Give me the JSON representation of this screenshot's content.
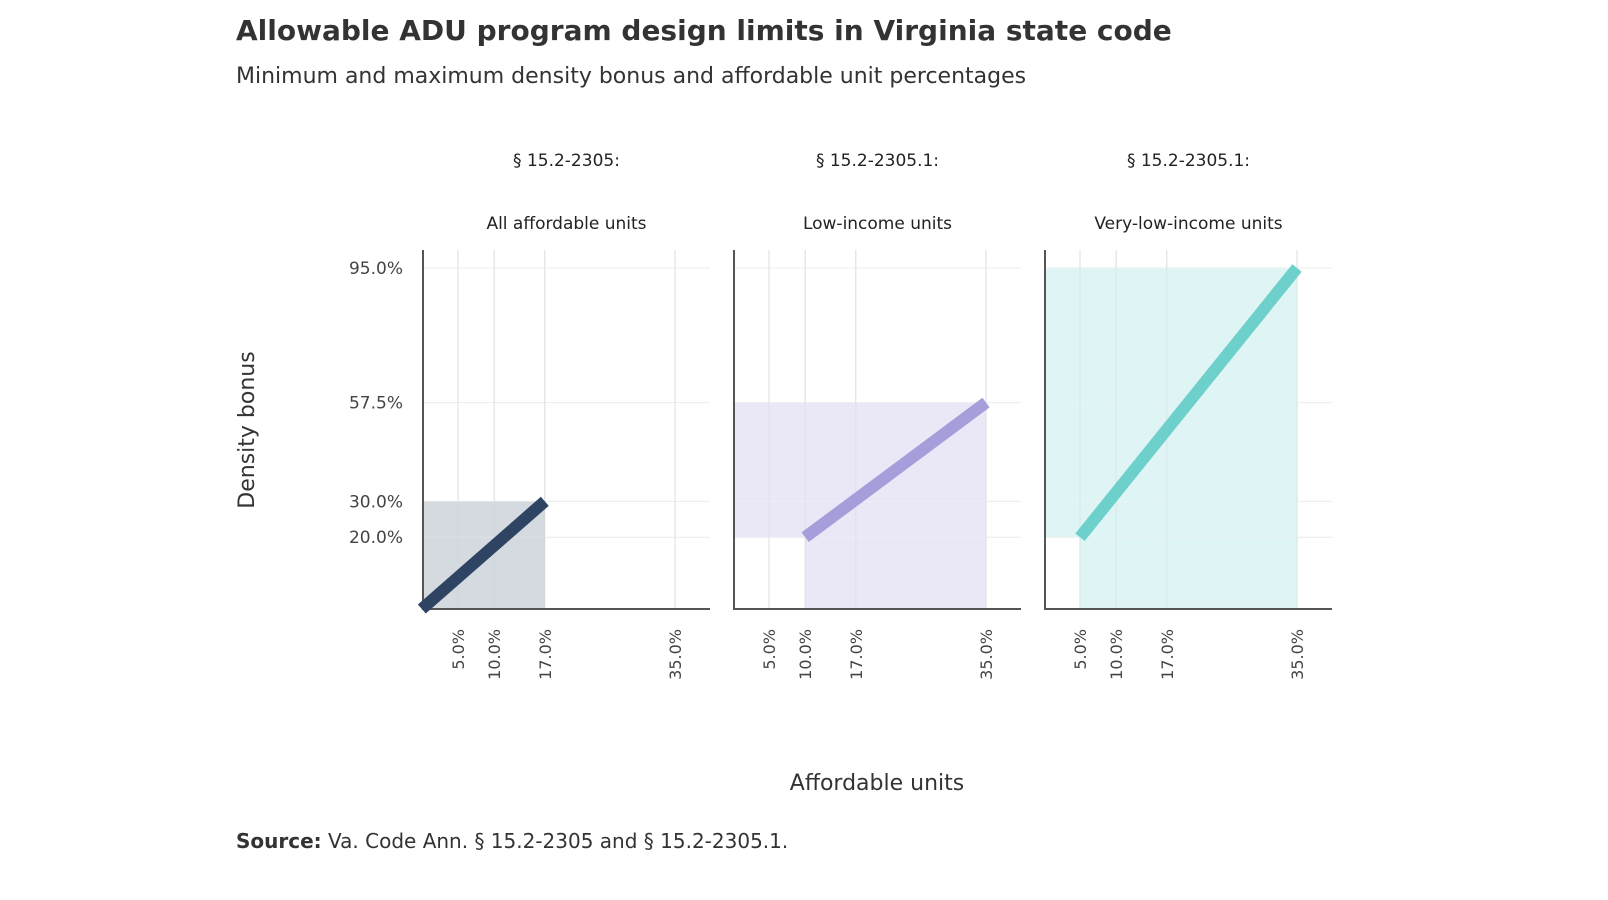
{
  "header": {
    "title": "Allowable ADU program design limits in Virginia state code",
    "subtitle": "Minimum and maximum density bonus and affordable unit percentages"
  },
  "footer": {
    "source_label": "Source:",
    "source_text": "Va. Code Ann. § 15.2-2305 and § 15.2-2305.1."
  },
  "chart_data": {
    "type": "line",
    "xlabel": "Affordable units",
    "ylabel": "Density bonus",
    "x_ticks": [
      "5.0%",
      "10.0%",
      "17.0%",
      "35.0%"
    ],
    "x_tick_values": [
      5,
      10,
      17,
      35
    ],
    "y_ticks": [
      "95.0%",
      "57.5%",
      "30.0%",
      "20.0%"
    ],
    "y_tick_values": [
      95,
      57.5,
      30,
      20
    ],
    "xlim": [
      0,
      40
    ],
    "ylim": [
      0,
      100
    ],
    "grid": true,
    "panels": [
      {
        "title_line1": "§ 15.2-2305:",
        "title_line2": "All affordable units",
        "color": "#2e4462",
        "fill": "#d5dae0",
        "x": [
          0,
          17
        ],
        "y": [
          0,
          30
        ],
        "region_x": [
          0,
          17
        ],
        "region_y": [
          0,
          30
        ]
      },
      {
        "title_line1": "§ 15.2-2305.1:",
        "title_line2": "Low-income units",
        "color": "#a59edb",
        "fill": "#eae8f6",
        "x": [
          10,
          35
        ],
        "y": [
          20,
          57.5
        ],
        "region_x": [
          0,
          35
        ],
        "region_y": [
          20,
          57.5
        ],
        "region2_x": [
          10,
          35
        ],
        "region2_y": [
          0,
          20
        ]
      },
      {
        "title_line1": "§ 15.2-2305.1:",
        "title_line2": "Very-low-income units",
        "color": "#6dd0cb",
        "fill": "#dff4f4",
        "x": [
          5,
          35
        ],
        "y": [
          20,
          95
        ],
        "region_x": [
          0,
          35
        ],
        "region_y": [
          20,
          95
        ],
        "region2_x": [
          5,
          35
        ],
        "region2_y": [
          0,
          20
        ]
      }
    ]
  }
}
